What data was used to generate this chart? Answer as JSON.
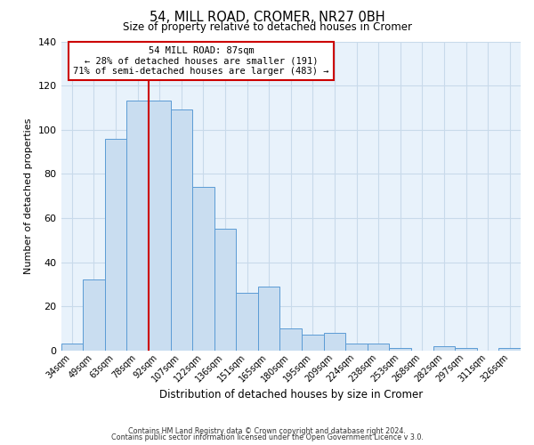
{
  "title": "54, MILL ROAD, CROMER, NR27 0BH",
  "subtitle": "Size of property relative to detached houses in Cromer",
  "xlabel": "Distribution of detached houses by size in Cromer",
  "ylabel": "Number of detached properties",
  "bar_labels": [
    "34sqm",
    "49sqm",
    "63sqm",
    "78sqm",
    "92sqm",
    "107sqm",
    "122sqm",
    "136sqm",
    "151sqm",
    "165sqm",
    "180sqm",
    "195sqm",
    "209sqm",
    "224sqm",
    "238sqm",
    "253sqm",
    "268sqm",
    "282sqm",
    "297sqm",
    "311sqm",
    "326sqm"
  ],
  "bar_values": [
    3,
    32,
    96,
    113,
    113,
    109,
    74,
    55,
    26,
    29,
    10,
    7,
    8,
    3,
    3,
    1,
    0,
    2,
    1,
    0,
    1
  ],
  "bar_color": "#c9ddf0",
  "bar_edge_color": "#5b9bd5",
  "ylim": [
    0,
    140
  ],
  "yticks": [
    0,
    20,
    40,
    60,
    80,
    100,
    120,
    140
  ],
  "grid_color": "#c8daea",
  "background_color": "#e8f2fb",
  "vline_x_index": 4,
  "vline_color": "#cc0000",
  "annotation_title": "54 MILL ROAD: 87sqm",
  "annotation_line1": "← 28% of detached houses are smaller (191)",
  "annotation_line2": "71% of semi-detached houses are larger (483) →",
  "annotation_box_color": "#ffffff",
  "annotation_box_edge": "#cc0000",
  "footer1": "Contains HM Land Registry data © Crown copyright and database right 2024.",
  "footer2": "Contains public sector information licensed under the Open Government Licence v 3.0."
}
